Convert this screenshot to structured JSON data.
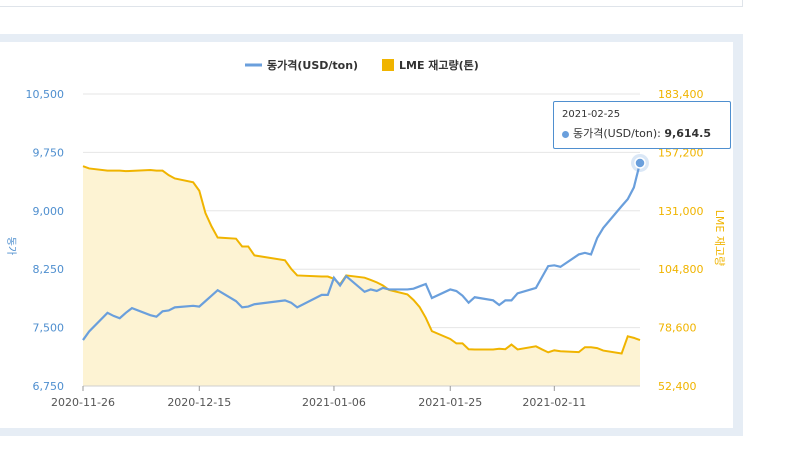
{
  "chart_data": {
    "type": "line",
    "x": [
      "2020-11-26",
      "2020-11-27",
      "2020-11-30",
      "2020-12-01",
      "2020-12-02",
      "2020-12-03",
      "2020-12-04",
      "2020-12-07",
      "2020-12-08",
      "2020-12-09",
      "2020-12-10",
      "2020-12-11",
      "2020-12-14",
      "2020-12-15",
      "2020-12-16",
      "2020-12-17",
      "2020-12-18",
      "2020-12-21",
      "2020-12-22",
      "2020-12-23",
      "2020-12-24",
      "2020-12-29",
      "2020-12-30",
      "2020-12-31",
      "2021-01-04",
      "2021-01-05",
      "2021-01-06",
      "2021-01-07",
      "2021-01-08",
      "2021-01-11",
      "2021-01-12",
      "2021-01-13",
      "2021-01-14",
      "2021-01-15",
      "2021-01-18",
      "2021-01-19",
      "2021-01-20",
      "2021-01-21",
      "2021-01-22",
      "2021-01-25",
      "2021-01-26",
      "2021-01-27",
      "2021-01-28",
      "2021-01-29",
      "2021-02-01",
      "2021-02-02",
      "2021-02-03",
      "2021-02-04",
      "2021-02-05",
      "2021-02-08",
      "2021-02-09",
      "2021-02-10",
      "2021-02-11",
      "2021-02-12",
      "2021-02-15",
      "2021-02-16",
      "2021-02-17",
      "2021-02-18",
      "2021-02-19",
      "2021-02-22",
      "2021-02-23",
      "2021-02-24",
      "2021-02-25"
    ],
    "xticks": [
      "2020-11-26",
      "2020-12-15",
      "2021-01-06",
      "2021-01-25",
      "2021-02-11"
    ],
    "series": [
      {
        "name": "동가격(USD/ton)",
        "axis": "left",
        "color": "#6a9fdc",
        "values": [
          7340,
          7450,
          7690,
          7650,
          7620,
          7690,
          7750,
          7660,
          7640,
          7710,
          7720,
          7760,
          7780,
          7770,
          7840,
          7910,
          7980,
          7840,
          7760,
          7770,
          7800,
          7850,
          7820,
          7760,
          7920,
          7920,
          8140,
          8040,
          8160,
          7960,
          7990,
          7970,
          8010,
          7990,
          7990,
          8000,
          8030,
          8060,
          7880,
          7990,
          7970,
          7910,
          7820,
          7890,
          7850,
          7790,
          7850,
          7850,
          7940,
          8010,
          8150,
          8290,
          8300,
          8280,
          8440,
          8460,
          8440,
          8650,
          8780,
          9060,
          9150,
          9300,
          9614.5
        ]
      },
      {
        "name": "LME 재고량(톤)",
        "axis": "right",
        "color": "#f0b400",
        "values": [
          151000,
          150000,
          149000,
          149000,
          149000,
          148800,
          148900,
          149300,
          149000,
          149000,
          147000,
          145500,
          143800,
          140000,
          130000,
          124000,
          119000,
          118500,
          115000,
          115000,
          111000,
          108800,
          105000,
          102000,
          101500,
          101500,
          100500,
          98000,
          102000,
          101000,
          100000,
          98900,
          97500,
          95500,
          93500,
          91000,
          87800,
          83000,
          77000,
          73500,
          71500,
          71500,
          68900,
          68800,
          68800,
          69100,
          68900,
          71000,
          68800,
          70200,
          68800,
          67500,
          68400,
          68000,
          67600,
          69800,
          69800,
          69400,
          68300,
          67000,
          74700,
          74000,
          73000
        ]
      }
    ],
    "y_left": {
      "ticks": [
        "10,500",
        "9,750",
        "9,000",
        "8,250",
        "7,500",
        "6,750"
      ],
      "min": 6750,
      "max": 10500,
      "label": "동가"
    },
    "y_right": {
      "ticks": [
        "183,400",
        "157,200",
        "131,000",
        "104,800",
        "78,600",
        "52,400"
      ],
      "min": 52400,
      "max": 183400,
      "label": "LME 재고량"
    },
    "grid": true,
    "legend_position": "top-center"
  },
  "legend": {
    "copper_label": "동가격(USD/ton)",
    "stock_label": "LME 재고량(톤)"
  },
  "tooltip": {
    "date": "2021-02-25",
    "series_label": "동가격(USD/ton):",
    "value": "9,614.5"
  },
  "colors": {
    "copper": "#6a9fdc",
    "stock": "#f0b400",
    "stock_fill": "#fdf3d3",
    "grid": "#e6e6e6",
    "panel": "#e6edf5"
  }
}
